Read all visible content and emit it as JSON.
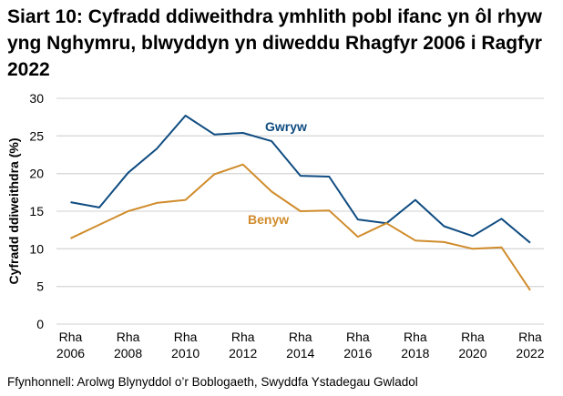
{
  "chart_data": {
    "type": "line",
    "title": "Siart 10: Cyfradd ddiweithdra ymhlith pobl ifanc yn ôl rhyw yng Nghymru, blwyddyn yn diweddu Rhagfyr 2006 i Ragfyr 2022",
    "xlabel": "",
    "ylabel": "Cyfradd ddiweithdra (%)",
    "ylim": [
      0,
      30
    ],
    "yticks": [
      0,
      5,
      10,
      15,
      20,
      25,
      30
    ],
    "grid": true,
    "x": [
      2006,
      2007,
      2008,
      2009,
      2010,
      2011,
      2012,
      2013,
      2014,
      2015,
      2016,
      2017,
      2018,
      2019,
      2020,
      2021,
      2022
    ],
    "xtick_labels": [
      {
        "line1": "Rha",
        "line2": "2006"
      },
      {
        "line1": "Rha",
        "line2": "2008"
      },
      {
        "line1": "Rha",
        "line2": "2010"
      },
      {
        "line1": "Rha",
        "line2": "2012"
      },
      {
        "line1": "Rha",
        "line2": "2014"
      },
      {
        "line1": "Rha",
        "line2": "2016"
      },
      {
        "line1": "Rha",
        "line2": "2018"
      },
      {
        "line1": "Rha",
        "line2": "2020"
      },
      {
        "line1": "Rha",
        "line2": "2022"
      }
    ],
    "series": [
      {
        "name": "Gwryw",
        "color": "#0f4c81",
        "values": [
          16.2,
          15.5,
          20.1,
          23.3,
          27.7,
          25.2,
          25.4,
          24.3,
          19.7,
          19.6,
          13.9,
          13.4,
          16.5,
          13.0,
          11.7,
          14.0,
          10.8
        ]
      },
      {
        "name": "Benyw",
        "color": "#d08c2b",
        "values": [
          11.4,
          13.2,
          15.0,
          16.1,
          16.5,
          19.9,
          21.2,
          17.6,
          15.0,
          15.1,
          11.6,
          13.4,
          11.1,
          10.9,
          10.0,
          10.2,
          4.5
        ]
      }
    ],
    "legend": "inline labels"
  },
  "source": "Ffynhonnell: Arolwg Blynyddol o’r Boblogaeth, Swyddfa Ystadegau Gwladol"
}
